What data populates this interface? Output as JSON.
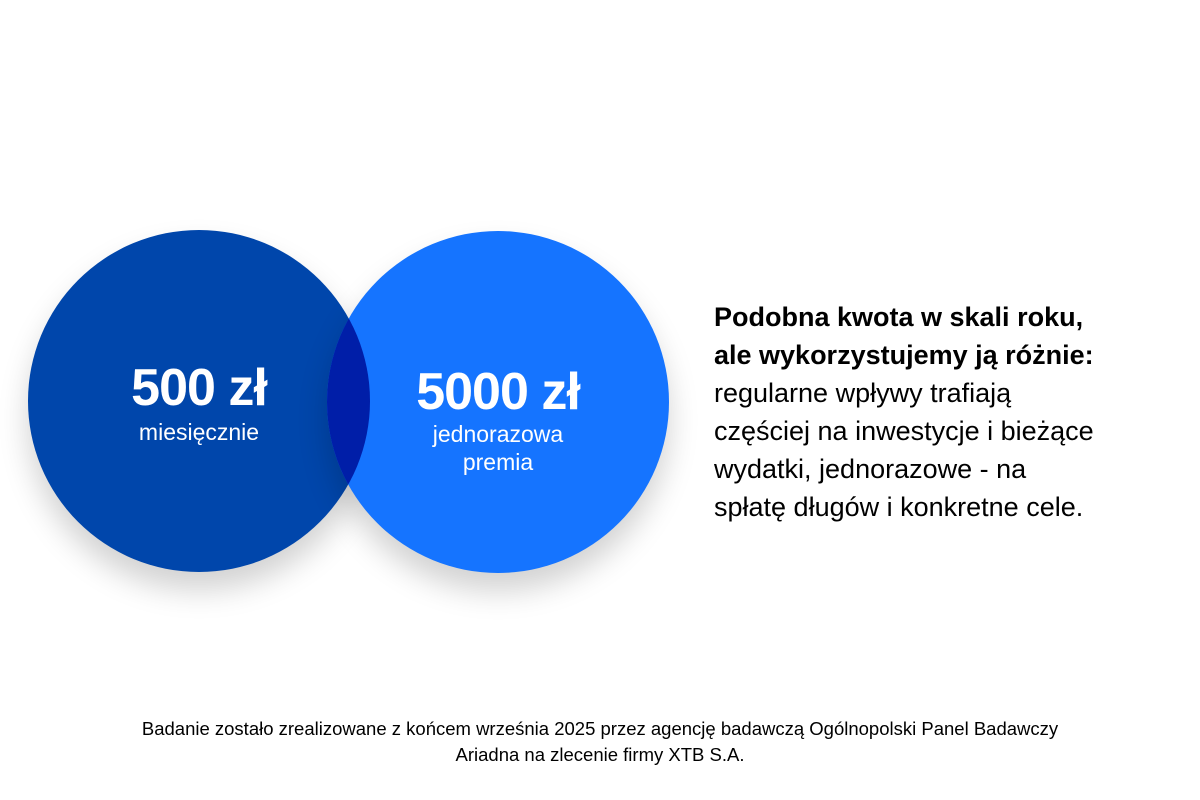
{
  "colors": {
    "left_circle": "#0046ab",
    "right_circle": "#1574ff",
    "overlap": "#001ea8"
  },
  "left": {
    "amount": "500 zł",
    "caption": "miesięcznie"
  },
  "right": {
    "amount": "5000 zł",
    "caption_line1": "jednorazowa",
    "caption_line2": "premia"
  },
  "summary": {
    "bold_line1": "Podobna kwota w skali roku,",
    "bold_line2": "ale wykorzystujemy ją różnie:",
    "lines": [
      "regularne wpływy trafiają",
      "częściej na inwestycje i bieżące",
      "wydatki, jednorazowe - na",
      "spłatę długów i konkretne cele."
    ]
  },
  "footer": {
    "line1": "Badanie zostało zrealizowane z końcem września 2025 przez agencję badawczą Ogólnopolski Panel Badawczy",
    "line2": "Ariadna na zlecenie firmy XTB S.A."
  }
}
